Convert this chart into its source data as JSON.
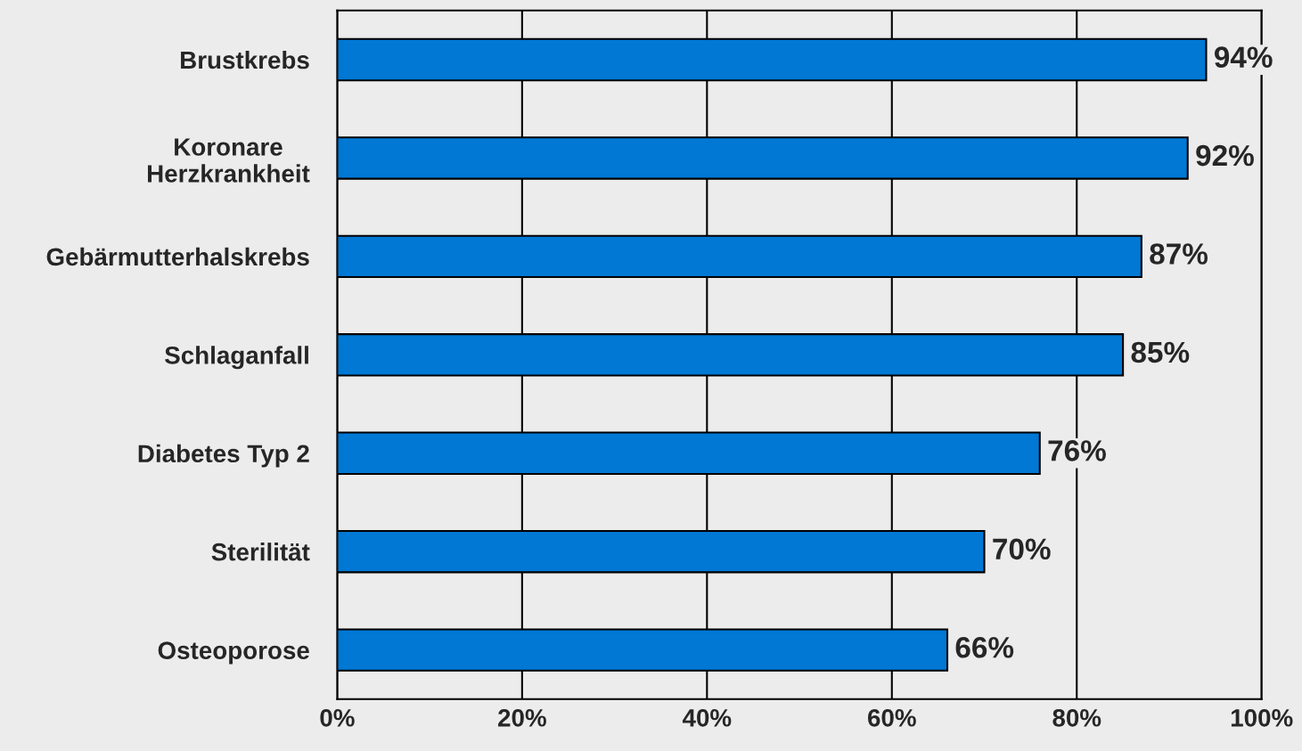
{
  "chart_data": {
    "type": "bar",
    "orientation": "horizontal",
    "categories": [
      "Brustkrebs",
      "Koronare\nHerzkrankheit",
      "Gebärmutterhalskrebs",
      "Schlaganfall",
      "Diabetes Typ 2",
      "Sterilität",
      "Osteoporose"
    ],
    "values": [
      94,
      92,
      87,
      85,
      76,
      70,
      66
    ],
    "color": "#0078d4",
    "xlim": [
      0,
      100
    ],
    "xticks": [
      {
        "value": 0,
        "label": "0%"
      },
      {
        "value": 20,
        "label": "20%"
      },
      {
        "value": 40,
        "label": "40%"
      },
      {
        "value": 60,
        "label": "60%"
      },
      {
        "value": 80,
        "label": "80%"
      },
      {
        "value": 100,
        "label": "100%"
      }
    ],
    "value_labels": [
      "94%",
      "92%",
      "87%",
      "85%",
      "76%",
      "70%",
      "66%"
    ],
    "grid": "x"
  }
}
